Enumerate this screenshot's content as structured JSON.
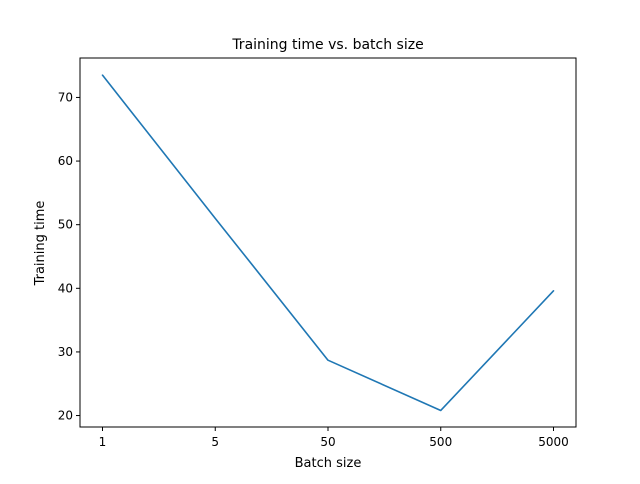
{
  "chart_data": {
    "type": "line",
    "title": "Training time vs. batch size",
    "xlabel": "Batch size",
    "ylabel": "Training time",
    "x_scale": "categorical",
    "categories": [
      "1",
      "5",
      "50",
      "500",
      "5000"
    ],
    "series": [
      {
        "values": [
          73.5,
          51.0,
          28.7,
          20.8,
          39.6
        ],
        "color": "#1f77b4"
      }
    ],
    "yticks": [
      20,
      30,
      40,
      50,
      60,
      70
    ],
    "ylim": [
      18.2,
      76.2
    ],
    "grid": false,
    "legend": "none"
  }
}
